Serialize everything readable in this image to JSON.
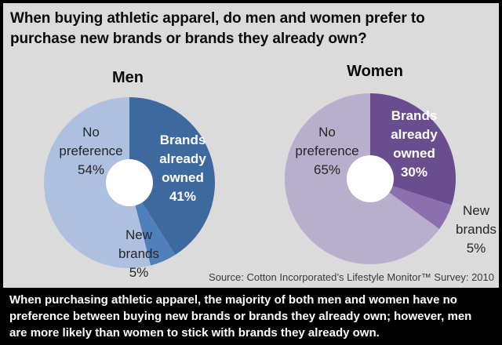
{
  "title": "When buying athletic apparel, do men and women prefer to\npurchase new brands or brands they already own?",
  "source": "Source: Cotton Incorporated’s Lifestyle Monitor™ Survey: 2010",
  "caption": "When purchasing athletic apparel, the majority of both men and women have no\npreference between buying new brands or brands they already own; however, men\nare more likely than women to stick with brands they already own.",
  "colors": {
    "panel_background": "#dbdbdb",
    "frame": "#000000",
    "donut_hole": "#ffffff",
    "caption_text": "#ffffff"
  },
  "chart_data": [
    {
      "type": "pie",
      "subtype": "donut",
      "title": "Men",
      "categories": [
        "Brands already owned",
        "New brands",
        "No preference"
      ],
      "values": [
        41,
        5,
        54
      ],
      "unit": "%",
      "colors": [
        "#3e699e",
        "#5080bc",
        "#aec0e0"
      ],
      "start_angle_deg": 0,
      "direction": "clockwise",
      "slice_labels": {
        "owned": "Brands\nalready\nowned\n41%",
        "new": "New\nbrands\n5%",
        "nopref": "No\npreference\n54%"
      }
    },
    {
      "type": "pie",
      "subtype": "donut",
      "title": "Women",
      "categories": [
        "Brands already owned",
        "New brands",
        "No preference"
      ],
      "values": [
        30,
        5,
        65
      ],
      "unit": "%",
      "colors": [
        "#694d8e",
        "#8c70ad",
        "#b8afcc"
      ],
      "start_angle_deg": 0,
      "direction": "clockwise",
      "slice_labels": {
        "owned": "Brands\nalready\nowned\n30%",
        "new": "New\nbrands\n5%",
        "nopref": "No\npreference\n65%"
      }
    }
  ]
}
